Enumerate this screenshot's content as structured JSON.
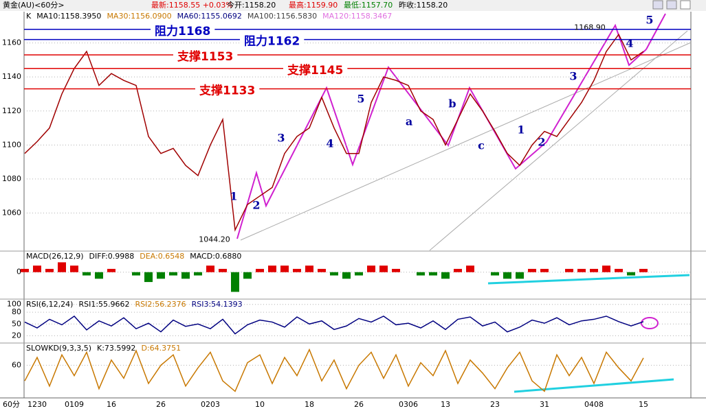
{
  "window": {
    "status": [
      "黄金(AU)<60分>",
      "最新:1158.55 +0.03%",
      "今开:1158.20",
      "最高:1159.90",
      "最低:1157.70",
      "昨收:1158.20"
    ],
    "axis_unit": "60分"
  },
  "chart_data": [
    {
      "type": "line",
      "header": [
        {
          "text": "K",
          "color": "#000000"
        },
        {
          "text": "MA10:1158.3950",
          "color": "#000000"
        },
        {
          "text": "MA30:1156.0900",
          "color": "#c87800"
        },
        {
          "text": "MA60:1155.0692",
          "color": "#000080"
        },
        {
          "text": "MA100:1156.5830",
          "color": "#404040"
        },
        {
          "text": "MA120:1158.3467",
          "color": "#e070e0"
        }
      ],
      "categories": [
        null,
        "1230",
        null,
        null,
        "0109",
        null,
        null,
        "16",
        null,
        null,
        null,
        "26",
        null,
        null,
        null,
        "0203",
        null,
        null,
        null,
        "10",
        null,
        null,
        null,
        "18",
        null,
        null,
        null,
        "26",
        null,
        null,
        null,
        "0306",
        null,
        null,
        "13",
        null,
        null,
        null,
        "23",
        null,
        null,
        null,
        "31",
        null,
        null,
        null,
        "0408",
        null,
        null,
        null,
        "15"
      ],
      "values": [
        1095,
        1102,
        1110,
        1130,
        1145,
        1155,
        1135,
        1142,
        1138,
        1135,
        1105,
        1095,
        1098,
        1088,
        1082,
        1100,
        1115,
        1050,
        1065,
        1070,
        1075,
        1095,
        1105,
        1110,
        1128,
        1110,
        1095,
        1095,
        1125,
        1140,
        1138,
        1135,
        1120,
        1115,
        1100,
        1115,
        1130,
        1120,
        1108,
        1095,
        1088,
        1100,
        1108,
        1105,
        1115,
        1125,
        1138,
        1155,
        1165,
        1150,
        1155
      ],
      "color": "#a00000",
      "ylim": [
        1038,
        1178
      ],
      "yticks": [
        1060,
        1080,
        1100,
        1120,
        1140,
        1160
      ],
      "grid": true,
      "levels": [
        {
          "label": "阻力1168",
          "value": 1168,
          "color": "#0000c0"
        },
        {
          "label": "阻力1162",
          "value": 1162,
          "color": "#0000c0"
        },
        {
          "label": "支撑1153",
          "value": 1153,
          "color": "#e00000"
        },
        {
          "label": "支撑1145",
          "value": 1145,
          "color": "#e00000"
        },
        {
          "label": "支撑1133",
          "value": 1133,
          "color": "#e00000"
        }
      ],
      "price_labels": [
        {
          "value": 1168.9,
          "label": "1168.90"
        },
        {
          "value": 1044.2,
          "label": "1044.20"
        }
      ],
      "waves": [
        "1",
        "2",
        "3",
        "4",
        "5",
        "a",
        "b",
        "c",
        "1",
        "2",
        "3",
        "4",
        "5"
      ]
    },
    {
      "type": "bar",
      "header": [
        {
          "text": "MACD(26,12,9)",
          "color": "#000000"
        },
        {
          "text": "DIFF:0.9988",
          "color": "#000000"
        },
        {
          "text": "DEA:0.6548",
          "color": "#c87800"
        },
        {
          "text": "MACD:0.6880",
          "color": "#000000"
        }
      ],
      "values": [
        1,
        2,
        1,
        3,
        2,
        -1,
        -2,
        1,
        0,
        -1,
        -3,
        -2,
        -1,
        -2,
        -1,
        2,
        1,
        -6,
        -2,
        1,
        2,
        2,
        1,
        2,
        1,
        -1,
        -2,
        -1,
        2,
        2,
        1,
        0,
        -1,
        -1,
        -2,
        1,
        2,
        0,
        -1,
        -2,
        -2,
        1,
        1,
        0,
        1,
        1,
        1,
        2,
        1,
        -1,
        1
      ],
      "colors": [
        "#e00000",
        "#008000"
      ],
      "ylim": [
        -8,
        6
      ],
      "yticks": [
        0
      ],
      "grid": true
    },
    {
      "type": "line",
      "header": [
        {
          "text": "RSI(6,12,24)",
          "color": "#000000"
        },
        {
          "text": "RSI1:55.9662",
          "color": "#000000"
        },
        {
          "text": "RSI2:56.2376",
          "color": "#c87800"
        },
        {
          "text": "RSI3:54.1393",
          "color": "#000080"
        }
      ],
      "values": [
        55,
        40,
        62,
        48,
        70,
        35,
        58,
        45,
        66,
        38,
        52,
        30,
        60,
        44,
        50,
        38,
        62,
        25,
        48,
        60,
        55,
        42,
        68,
        50,
        58,
        36,
        45,
        64,
        55,
        70,
        48,
        52,
        40,
        58,
        36,
        62,
        68,
        45,
        55,
        30,
        42,
        60,
        52,
        66,
        48,
        58,
        62,
        70,
        56,
        45,
        56
      ],
      "color": "#000080",
      "ylim": [
        5,
        110
      ],
      "yticks": [
        20,
        50,
        80,
        100
      ],
      "grid": true
    },
    {
      "type": "line",
      "header": [
        {
          "text": "SLOWKD(9,3,3,5)",
          "color": "#000000"
        },
        {
          "text": "K:73.5992",
          "color": "#000000"
        },
        {
          "text": "D:64.3751",
          "color": "#c87800"
        }
      ],
      "values": [
        30,
        75,
        20,
        80,
        40,
        85,
        15,
        70,
        35,
        88,
        25,
        60,
        80,
        20,
        55,
        85,
        30,
        10,
        65,
        80,
        25,
        75,
        40,
        90,
        30,
        70,
        15,
        60,
        85,
        35,
        80,
        20,
        65,
        40,
        88,
        25,
        70,
        45,
        15,
        55,
        85,
        30,
        10,
        80,
        40,
        75,
        25,
        85,
        55,
        30,
        74
      ],
      "color": "#c87800",
      "ylim": [
        0,
        100
      ],
      "yticks": [
        60
      ],
      "grid": true
    }
  ]
}
